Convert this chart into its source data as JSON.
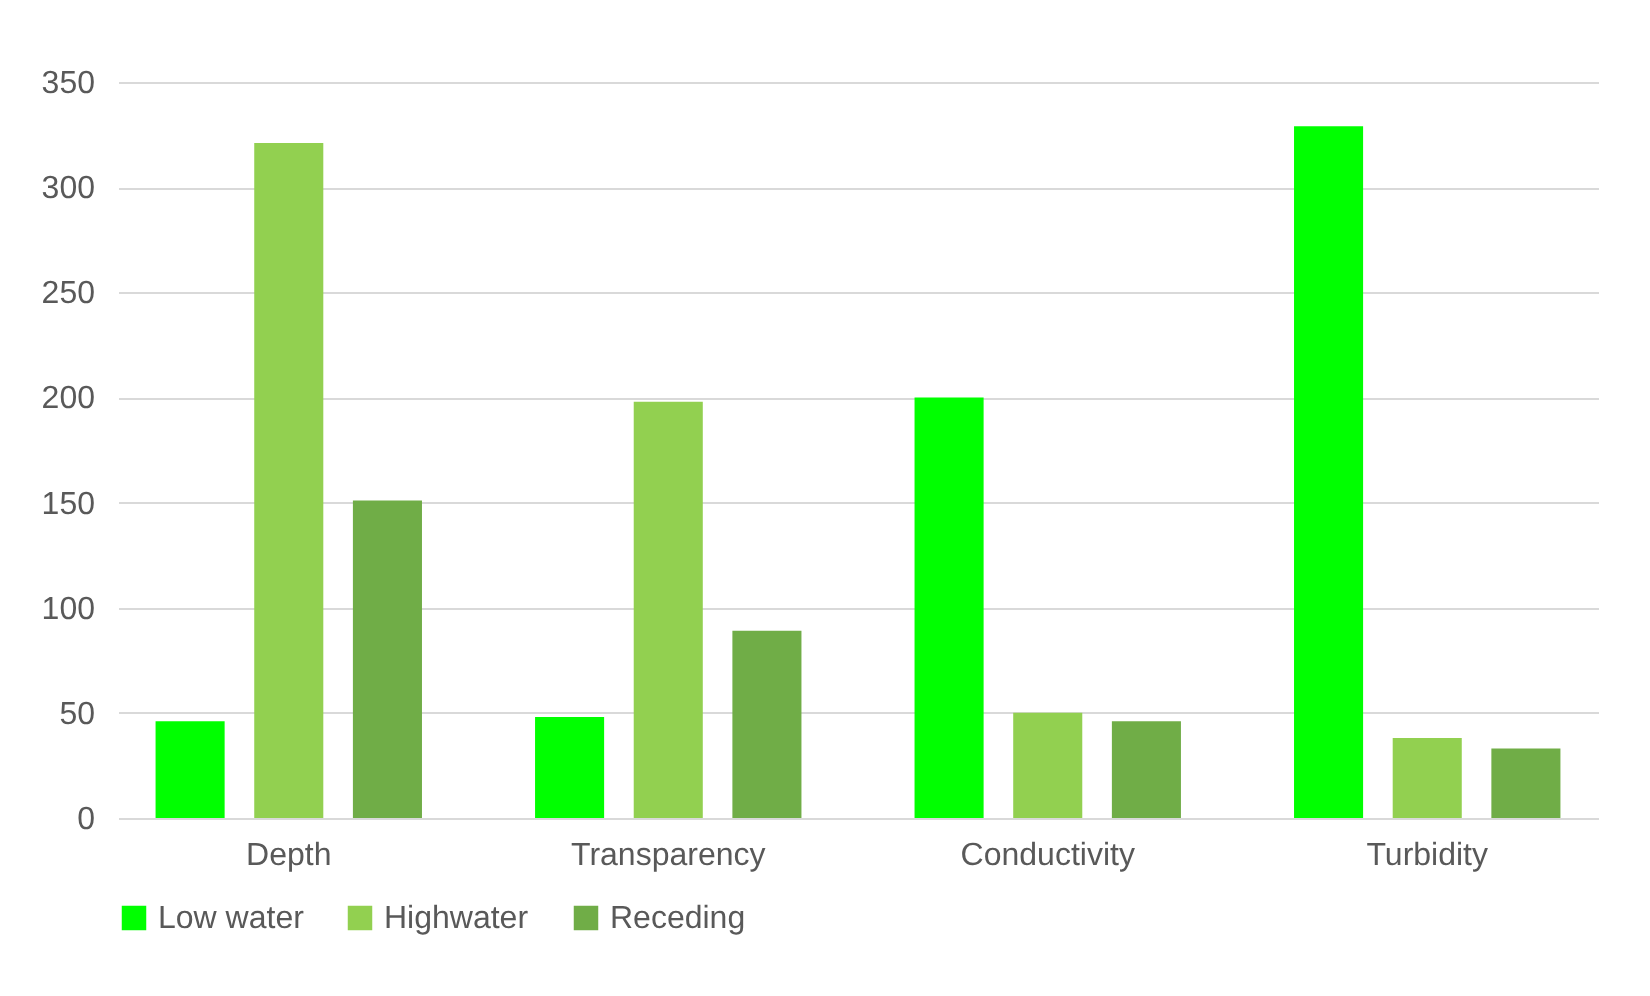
{
  "chart_data": {
    "type": "bar",
    "categories": [
      "Depth",
      "Transparency",
      "Conductivity",
      "Turbidity"
    ],
    "series": [
      {
        "name": "Low water",
        "color": "#00ff00",
        "values": [
          46,
          48,
          200,
          329
        ]
      },
      {
        "name": "Highwater",
        "color": "#92d050",
        "values": [
          321,
          198,
          50,
          38
        ]
      },
      {
        "name": "Receding",
        "color": "#70ad47",
        "values": [
          151,
          89,
          46,
          33
        ]
      }
    ],
    "ylim": [
      0,
      350
    ],
    "yticks": [
      0,
      50,
      100,
      150,
      200,
      250,
      300,
      350
    ],
    "grid": "y",
    "legend": "bottom"
  }
}
